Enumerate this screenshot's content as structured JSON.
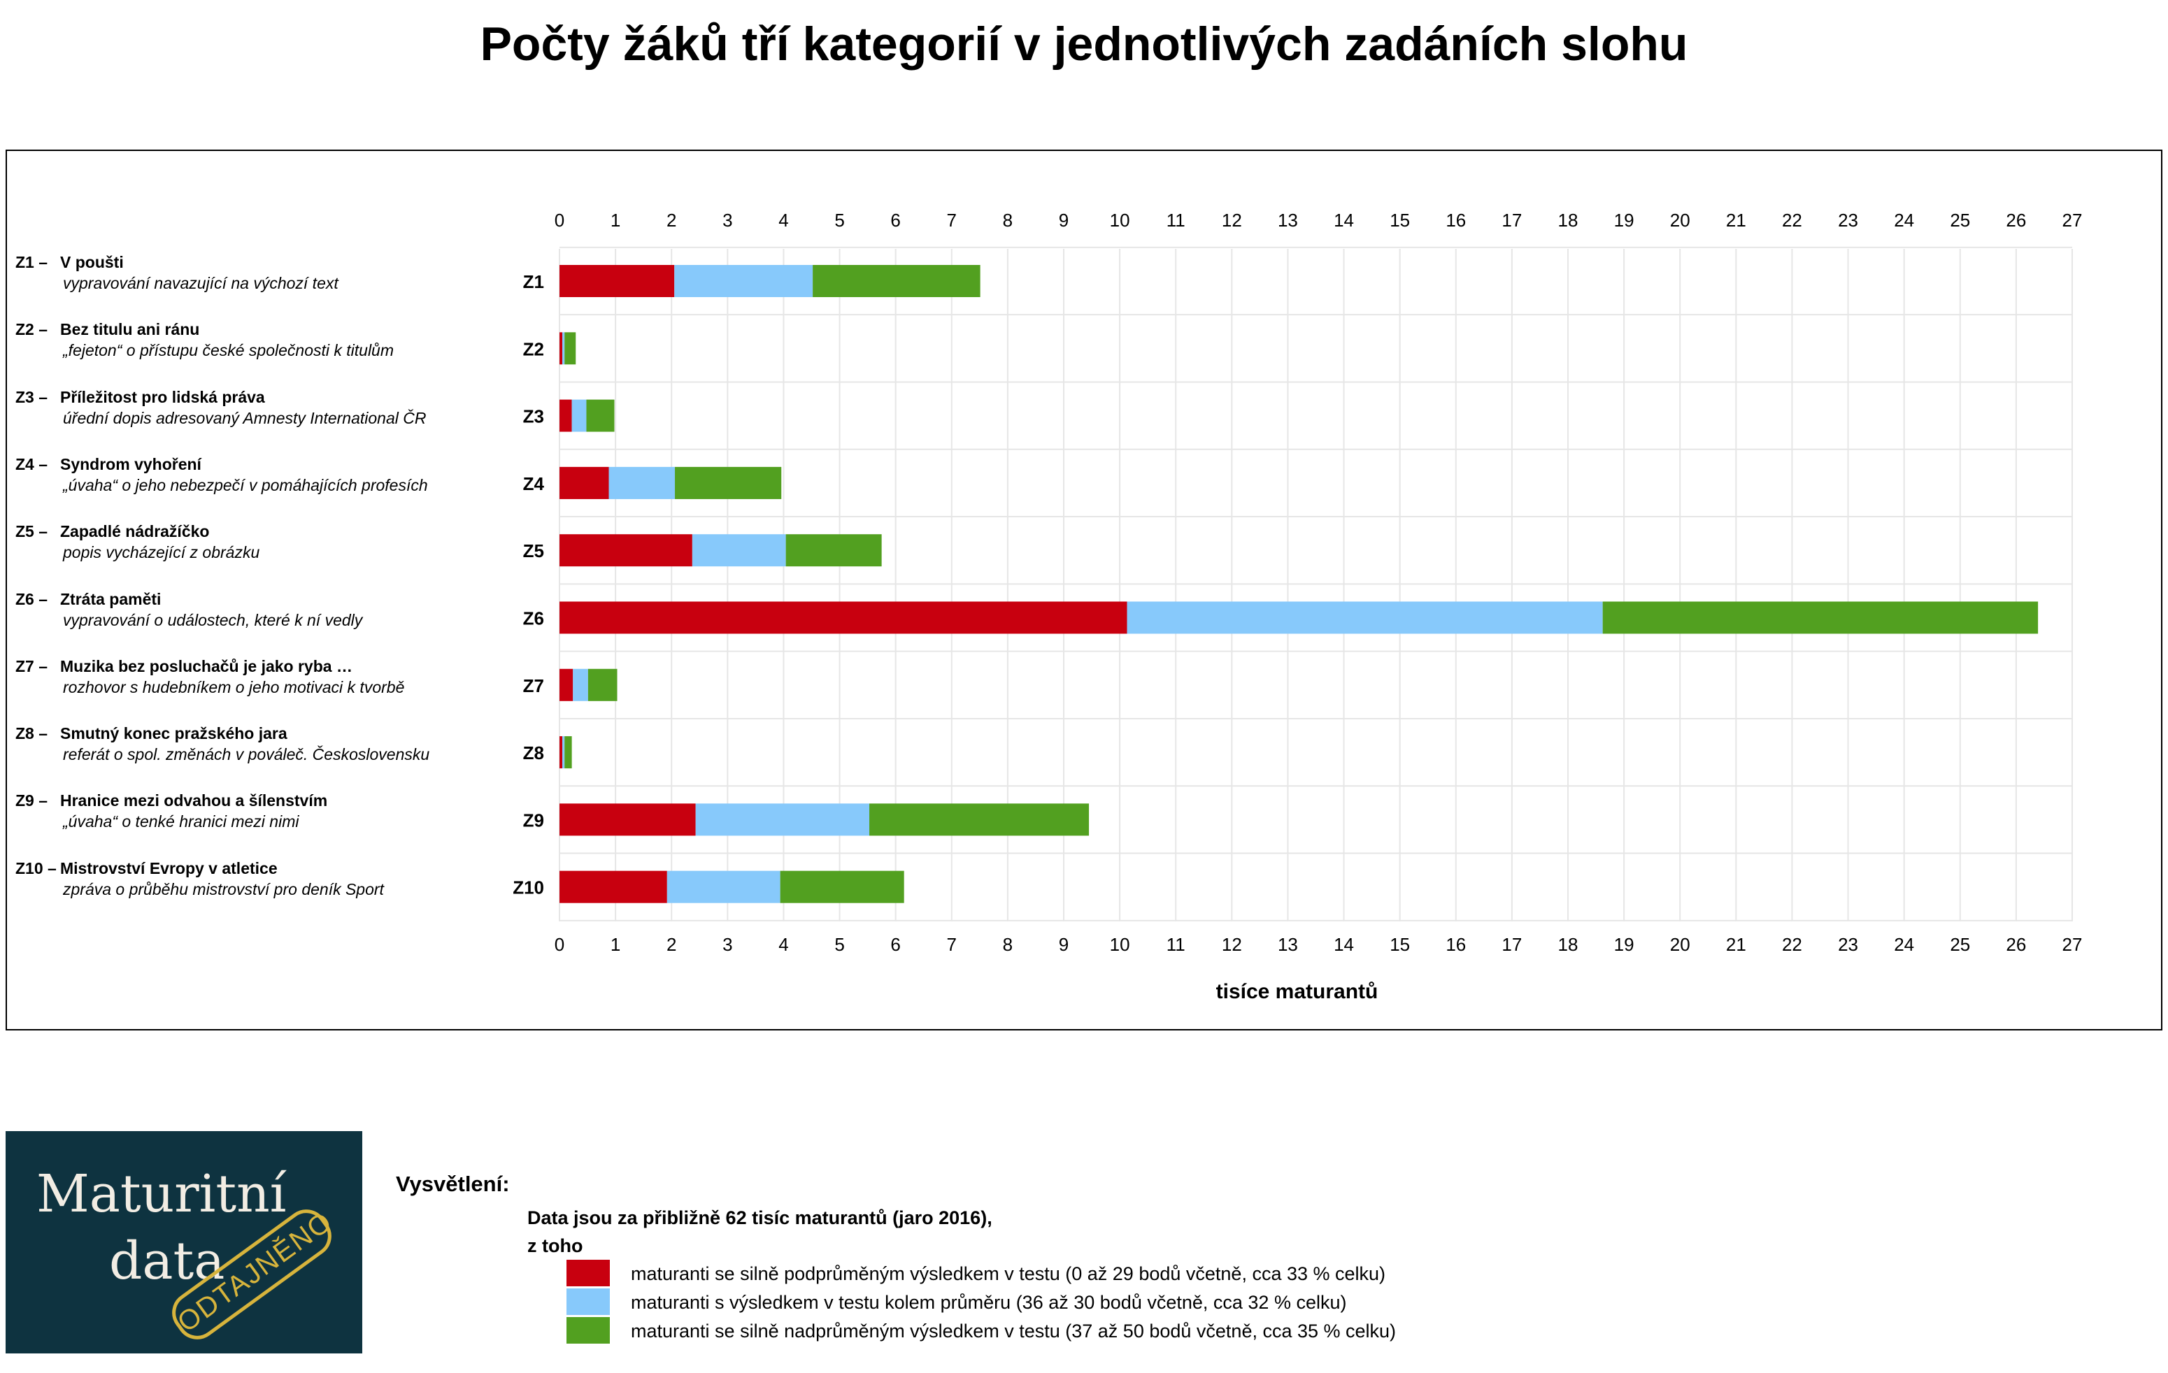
{
  "title": "Počty žáků tří kategorií v jednotlivých zadáních slohu",
  "colors": {
    "low": "#c8000f",
    "mid": "#87c9fb",
    "high": "#52a020",
    "grid": "#e6e6e6",
    "text": "#000000"
  },
  "chart_data": {
    "type": "bar",
    "orientation": "horizontal",
    "stacked": true,
    "xlabel": "tisíce maturantů",
    "xlim": [
      0,
      27
    ],
    "xticks": [
      "0",
      "1",
      "2",
      "3",
      "4",
      "5",
      "6",
      "7",
      "8",
      "9",
      "10",
      "11",
      "12",
      "13",
      "14",
      "15",
      "16",
      "17",
      "18",
      "19",
      "20",
      "21",
      "22",
      "23",
      "24",
      "25",
      "26",
      "27"
    ],
    "grid": true,
    "categories": [
      "Z1",
      "Z2",
      "Z3",
      "Z4",
      "Z5",
      "Z6",
      "Z7",
      "Z8",
      "Z9",
      "Z10"
    ],
    "series": [
      {
        "name": "maturanti se silně podprůměným výsledkem v testu (0 až 29 bodů včetně, cca 33 % celku)",
        "color": "#c8000f",
        "values": [
          2.05,
          0.05,
          0.22,
          0.88,
          2.37,
          10.13,
          0.24,
          0.05,
          2.43,
          1.92
        ]
      },
      {
        "name": "maturanti s výsledkem v testu kolem průměru (36 až 30 bodů včetně, cca 32 % celku)",
        "color": "#87c9fb",
        "values": [
          2.47,
          0.04,
          0.26,
          1.18,
          1.67,
          8.49,
          0.27,
          0.04,
          3.1,
          2.02
        ]
      },
      {
        "name": "maturanti se silně nadprůměným výsledkem v testu (37 až 50 bodů včetně, cca 35 % celku)",
        "color": "#52a020",
        "values": [
          2.99,
          0.2,
          0.5,
          1.9,
          1.71,
          7.77,
          0.52,
          0.13,
          3.92,
          2.21
        ]
      }
    ]
  },
  "rows": [
    {
      "code": "Z1 –",
      "name": "V poušti",
      "desc": "vypravování navazující na výchozí text"
    },
    {
      "code": "Z2 –",
      "name": "Bez titulu ani ránu",
      "desc": "„fejeton“ o přístupu české společnosti k titulům"
    },
    {
      "code": "Z3 –",
      "name": "Příležitost pro lidská práva",
      "desc": "úřední dopis adresovaný Amnesty International ČR"
    },
    {
      "code": "Z4 –",
      "name": "Syndrom vyhoření",
      "desc": "„úvaha“ o jeho nebezpečí v pomáhajících profesích"
    },
    {
      "code": "Z5 –",
      "name": "Zapadlé nádražíčko",
      "desc": "popis vycházející z obrázku"
    },
    {
      "code": "Z6 –",
      "name": "Ztráta paměti",
      "desc": "vypravování o událostech, které k ní vedly"
    },
    {
      "code": "Z7 –",
      "name": "Muzika bez posluchačů je jako ryba …",
      "desc": "rozhovor s hudebníkem o jeho motivaci k tvorbě"
    },
    {
      "code": "Z8 –",
      "name": "Smutný konec pražského jara",
      "desc": "referát o spol. změnách v pováleč. Československu"
    },
    {
      "code": "Z9 –",
      "name": "Hranice mezi odvahou a šílenstvím",
      "desc": "„úvaha“ o tenké hranici mezi nimi"
    },
    {
      "code": "Z10 –",
      "name": "Mistrovství Evropy v atletice",
      "desc": "zpráva o průběhu mistrovství pro deník Sport"
    }
  ],
  "logo": {
    "line1": "Maturitní",
    "line2": "data",
    "stamp": "ODTAJNĚNO"
  },
  "legend": {
    "heading": "Vysvětlení:",
    "note_line1": "Data jsou za přibližně 62 tisíc maturantů (jaro 2016),",
    "note_line2": "z toho"
  }
}
